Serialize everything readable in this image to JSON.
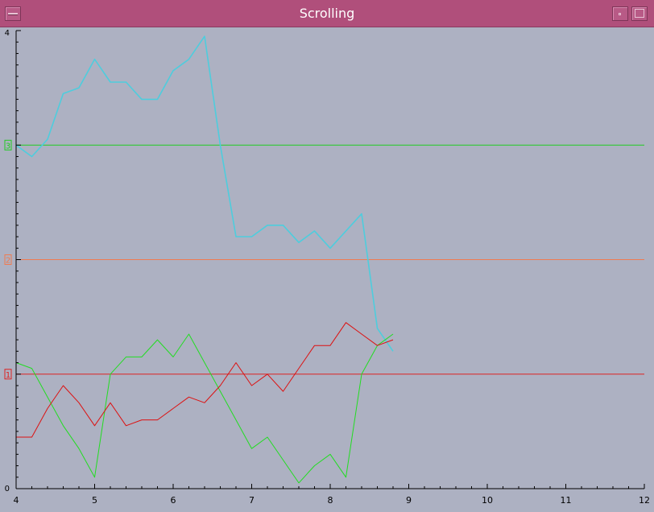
{
  "window": {
    "title": "Scrolling"
  },
  "chart_data": {
    "type": "line",
    "title": "",
    "xlabel": "",
    "ylabel": "",
    "xlim": [
      4,
      12
    ],
    "ylim": [
      0,
      4
    ],
    "xticks": [
      4,
      5,
      6,
      7,
      8,
      9,
      10,
      11,
      12
    ],
    "yticks": [
      0,
      4
    ],
    "grid": false,
    "reference_lines": [
      {
        "y": 3,
        "label": "3",
        "color": "#22cc22"
      },
      {
        "y": 2,
        "label": "2",
        "color": "#f07a50"
      },
      {
        "y": 1,
        "label": "1",
        "color": "#dd2222"
      }
    ],
    "series": [
      {
        "color": "#4ecddd",
        "x": [
          4.0,
          4.2,
          4.4,
          4.6,
          4.8,
          5.0,
          5.2,
          5.4,
          5.6,
          5.8,
          6.0,
          6.2,
          6.4,
          6.6,
          6.8,
          7.0,
          7.2,
          7.4,
          7.6,
          7.8,
          8.0,
          8.2,
          8.4,
          8.6,
          8.8
        ],
        "y": [
          3.0,
          2.9,
          3.05,
          3.45,
          3.5,
          3.75,
          3.55,
          3.55,
          3.4,
          3.4,
          3.65,
          3.75,
          3.95,
          3.0,
          2.2,
          2.2,
          2.3,
          2.3,
          2.15,
          2.25,
          2.1,
          2.25,
          2.4,
          1.4,
          1.2
        ]
      },
      {
        "color": "#22dd22",
        "x": [
          4.0,
          4.2,
          4.4,
          4.6,
          4.8,
          5.0,
          5.2,
          5.4,
          5.6,
          5.8,
          6.0,
          6.2,
          6.4,
          6.6,
          6.8,
          7.0,
          7.2,
          7.4,
          7.6,
          7.8,
          8.0,
          8.2,
          8.4,
          8.6,
          8.8
        ],
        "y": [
          1.1,
          1.05,
          0.8,
          0.55,
          0.35,
          0.1,
          1.0,
          1.15,
          1.15,
          1.3,
          1.15,
          1.35,
          1.1,
          0.85,
          0.6,
          0.35,
          0.45,
          0.25,
          0.05,
          0.2,
          0.3,
          0.1,
          1.0,
          1.25,
          1.35
        ]
      },
      {
        "color": "#dd1111",
        "x": [
          4.0,
          4.2,
          4.4,
          4.6,
          4.8,
          5.0,
          5.2,
          5.4,
          5.6,
          5.8,
          6.0,
          6.2,
          6.4,
          6.6,
          6.8,
          7.0,
          7.2,
          7.4,
          7.6,
          7.8,
          8.0,
          8.2,
          8.4,
          8.6,
          8.8
        ],
        "y": [
          0.45,
          0.45,
          0.7,
          0.9,
          0.75,
          0.55,
          0.75,
          0.55,
          0.6,
          0.6,
          0.7,
          0.8,
          0.75,
          0.9,
          1.1,
          0.9,
          1.0,
          0.85,
          1.05,
          1.25,
          1.25,
          1.45,
          1.35,
          1.25,
          1.3
        ]
      }
    ]
  }
}
